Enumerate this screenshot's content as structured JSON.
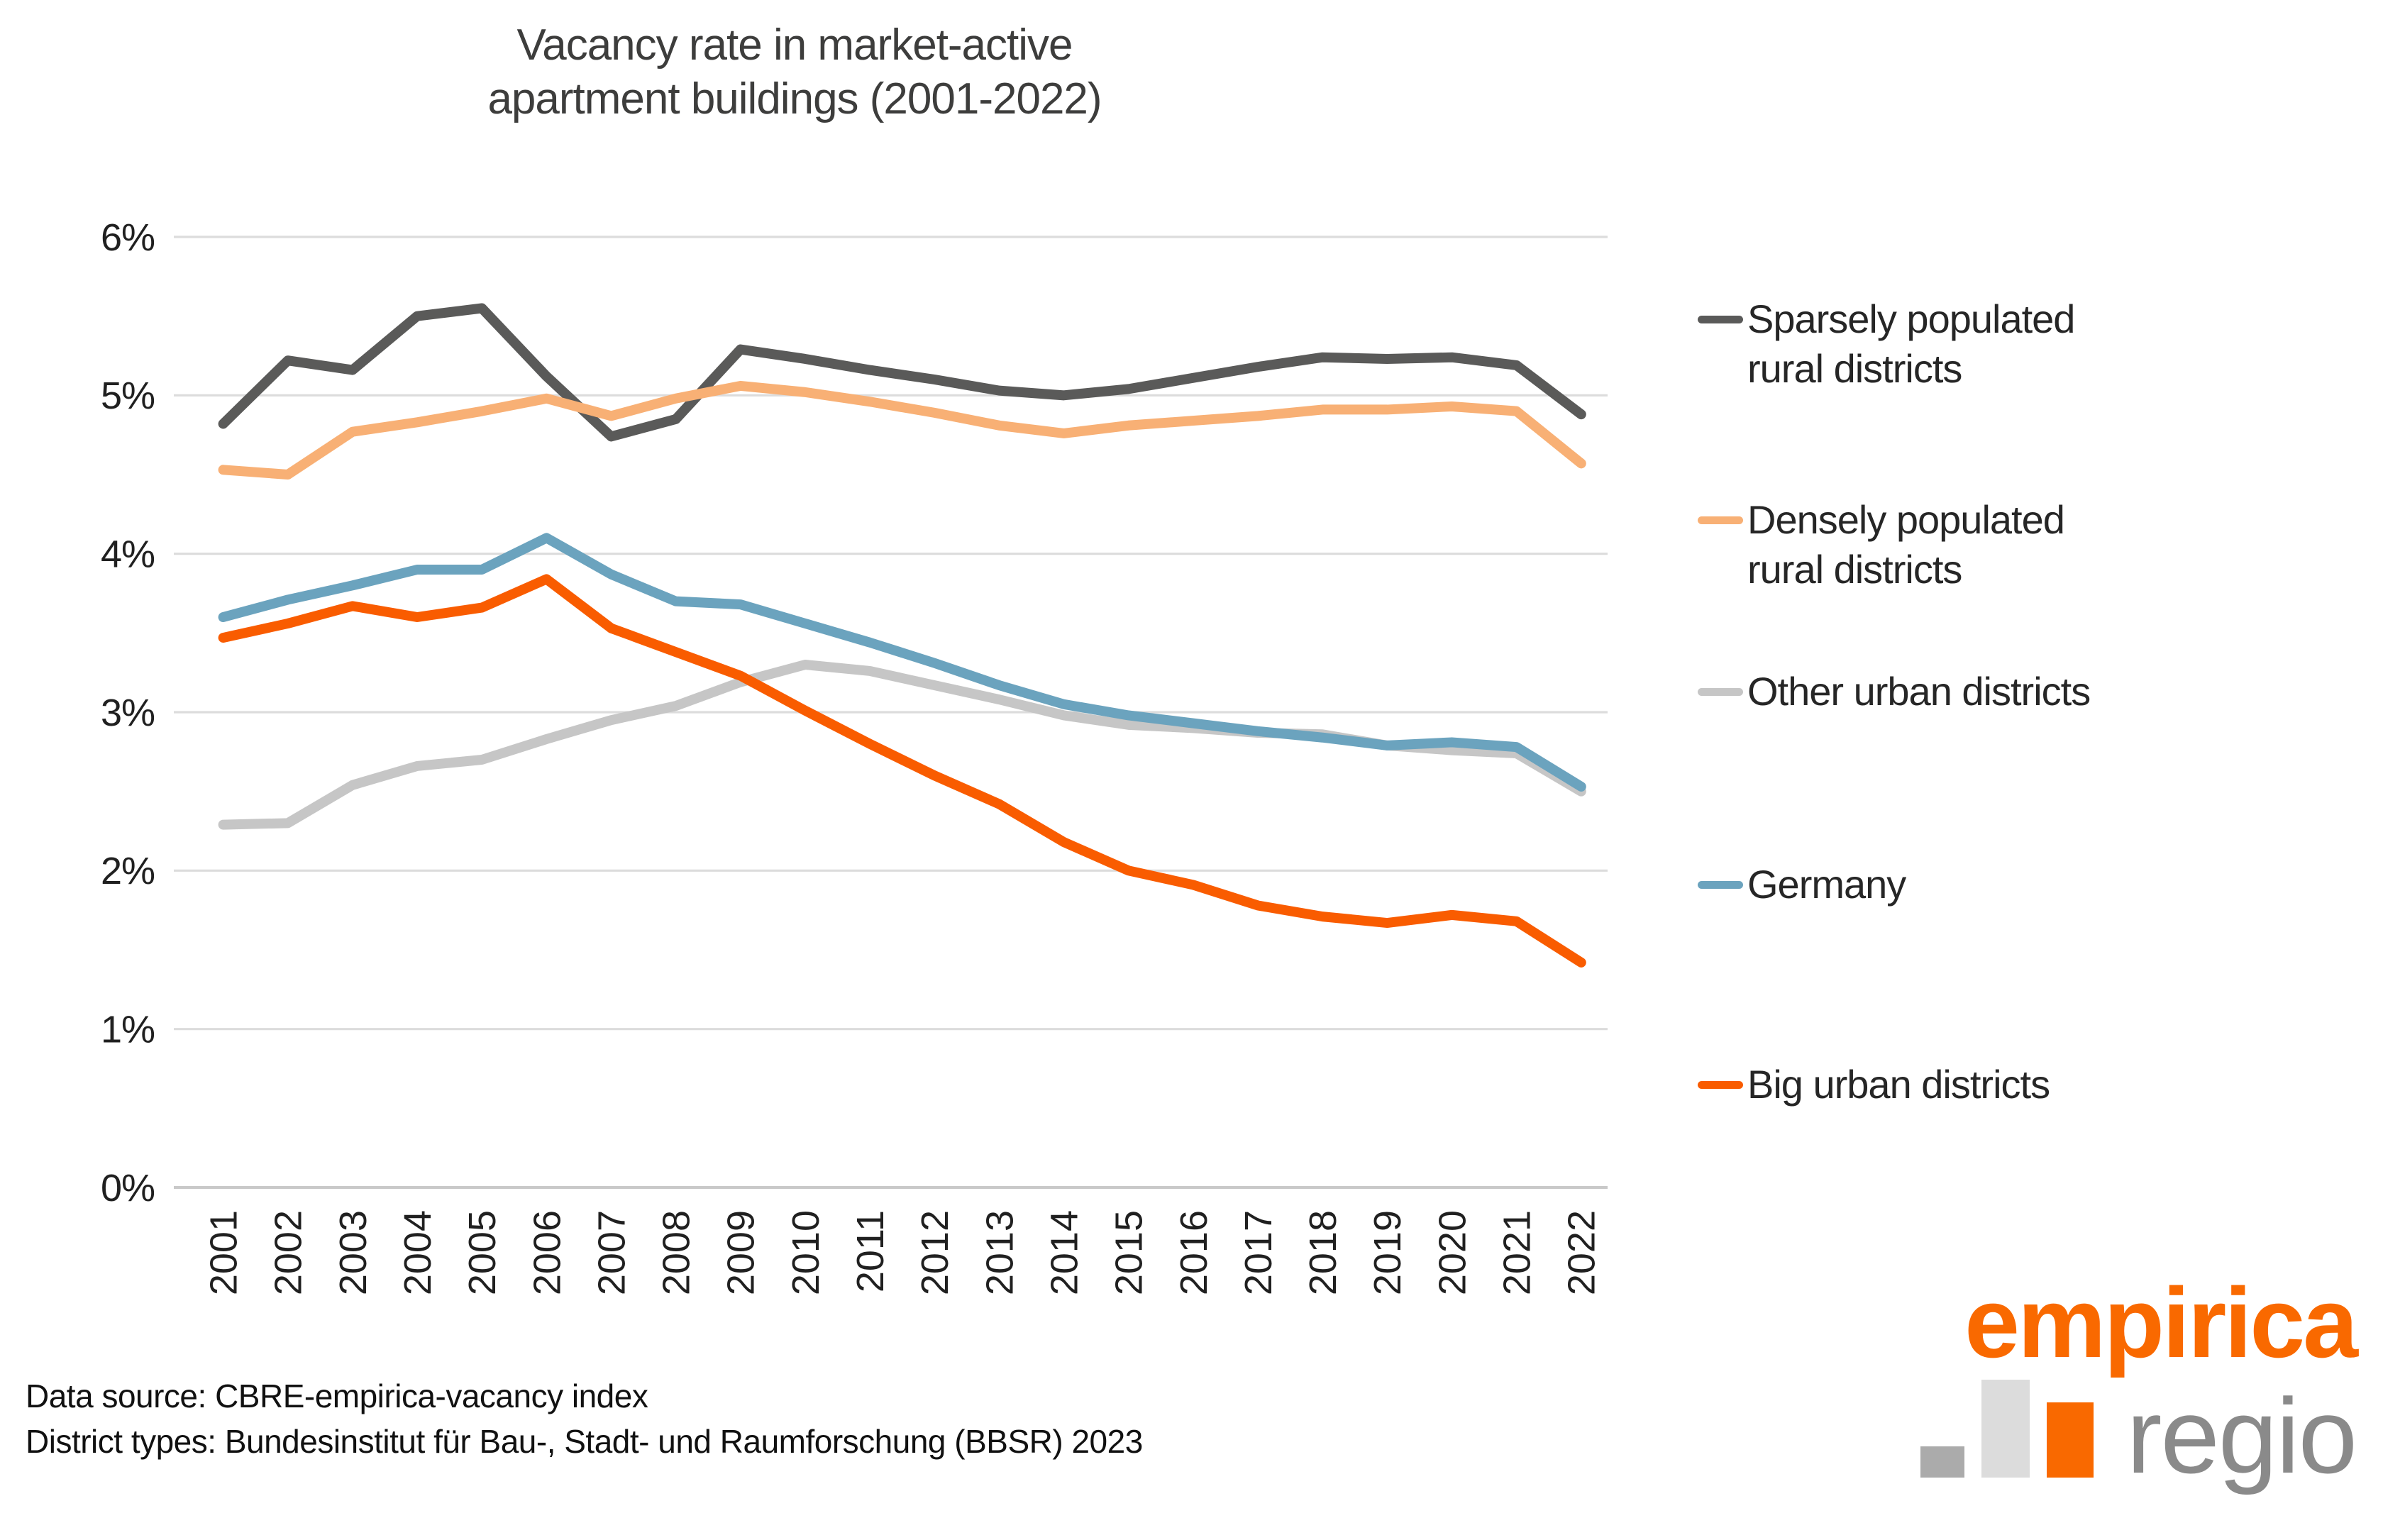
{
  "header": {
    "title_line1": "Vacancy rate in market-active",
    "title_line2": "apartment buildings (2001-2022)"
  },
  "chart_data": {
    "type": "line",
    "title": "Vacancy rate in market-active apartment buildings (2001-2022)",
    "xlabel": "",
    "ylabel": "",
    "x": [
      2001,
      2002,
      2003,
      2004,
      2005,
      2006,
      2007,
      2008,
      2009,
      2010,
      2011,
      2012,
      2013,
      2014,
      2015,
      2016,
      2017,
      2018,
      2019,
      2020,
      2021,
      2022
    ],
    "ylim": [
      0,
      6
    ],
    "yticks": [
      "0%",
      "1%",
      "2%",
      "3%",
      "4%",
      "5%",
      "6%"
    ],
    "grid": "horizontal",
    "legend_position": "right",
    "series": [
      {
        "name": "Sparsely populated rural districts",
        "color": "#5a5a59",
        "values": [
          4.82,
          5.22,
          5.16,
          5.5,
          5.55,
          5.12,
          4.74,
          4.85,
          5.29,
          5.23,
          5.16,
          5.1,
          5.03,
          5.0,
          5.04,
          5.11,
          5.18,
          5.24,
          5.23,
          5.24,
          5.19,
          4.88
        ]
      },
      {
        "name": "Densely populated rural districts",
        "color": "#f8b075",
        "values": [
          4.53,
          4.5,
          4.77,
          4.83,
          4.9,
          4.98,
          4.87,
          4.98,
          5.06,
          5.02,
          4.96,
          4.89,
          4.81,
          4.76,
          4.81,
          4.84,
          4.87,
          4.91,
          4.91,
          4.93,
          4.9,
          4.57
        ]
      },
      {
        "name": "Other urban districts",
        "color": "#c6c6c6",
        "values": [
          2.29,
          2.3,
          2.54,
          2.66,
          2.7,
          2.83,
          2.95,
          3.04,
          3.19,
          3.3,
          3.26,
          3.17,
          3.08,
          2.98,
          2.92,
          2.9,
          2.87,
          2.86,
          2.79,
          2.76,
          2.74,
          2.5
        ]
      },
      {
        "name": "Germany",
        "color": "#6ba3be",
        "values": [
          3.6,
          3.71,
          3.8,
          3.9,
          3.9,
          4.1,
          3.87,
          3.7,
          3.68,
          3.56,
          3.44,
          3.31,
          3.17,
          3.05,
          2.98,
          2.93,
          2.88,
          2.84,
          2.79,
          2.81,
          2.78,
          2.53
        ]
      },
      {
        "name": "Big urban districts",
        "color": "#f95c00",
        "values": [
          3.47,
          3.56,
          3.67,
          3.6,
          3.66,
          3.84,
          3.53,
          3.38,
          3.23,
          3.01,
          2.8,
          2.6,
          2.42,
          2.18,
          2.0,
          1.91,
          1.78,
          1.71,
          1.67,
          1.72,
          1.68,
          1.42
        ]
      }
    ]
  },
  "legend": {
    "items": [
      {
        "series": 0,
        "lines": [
          "Sparsely populated",
          "rural districts"
        ]
      },
      {
        "series": 1,
        "lines": [
          "Densely populated",
          "rural districts"
        ]
      },
      {
        "series": 2,
        "lines": [
          "Other urban districts"
        ]
      },
      {
        "series": 3,
        "lines": [
          "Germany"
        ]
      },
      {
        "series": 4,
        "lines": [
          "Big urban districts"
        ]
      }
    ]
  },
  "footer": {
    "line1": "Data source: CBRE-empirica-vacancy index",
    "line2": "District types: Bundesinstitut für Bau-, Stadt- und Raumforschung (BBSR) 2023"
  },
  "logo": {
    "brand": "empirica",
    "sub": "regio"
  }
}
